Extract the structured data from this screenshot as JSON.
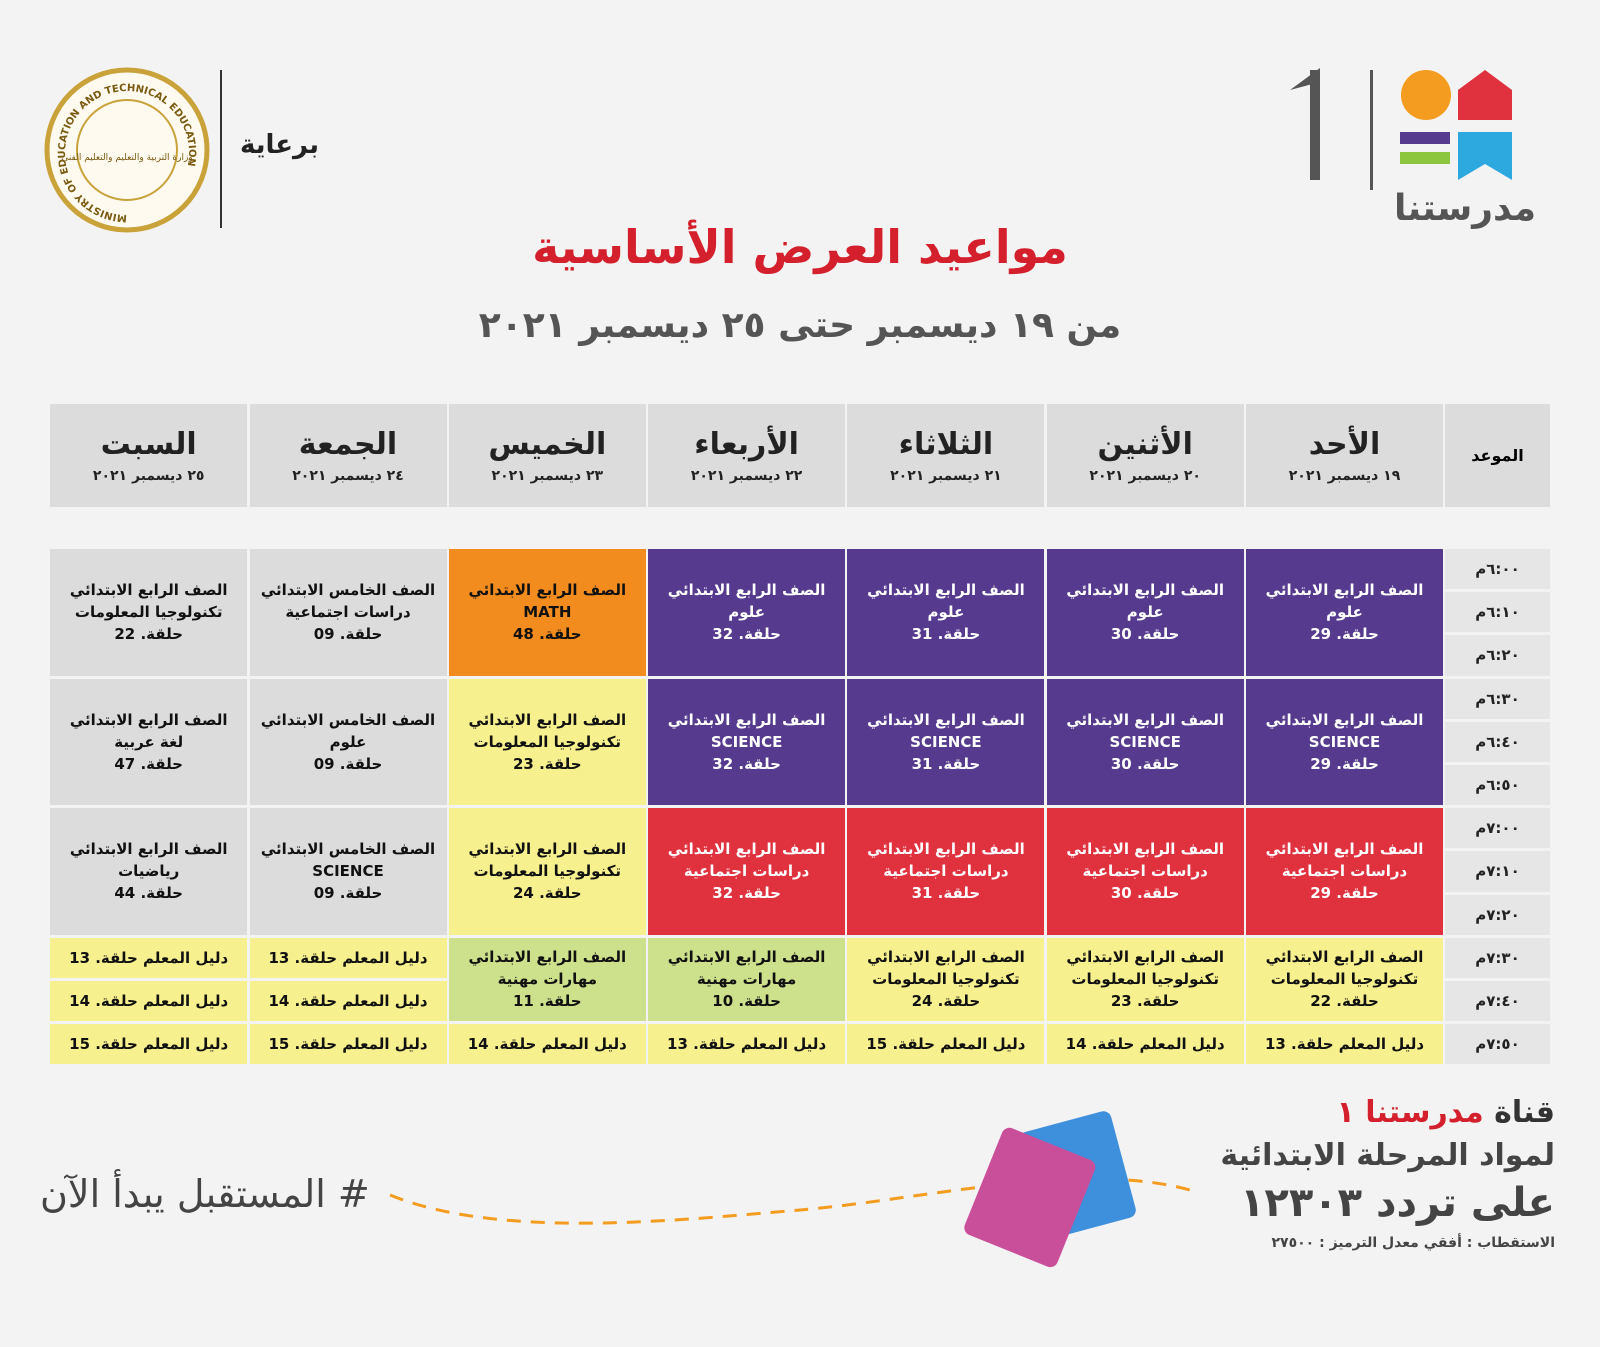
{
  "header": {
    "sponsor": "برعاية",
    "title": "مواعيد العرض الأساسية",
    "subtitle": "من ١٩ ديسمبر حتى ٢٥ ديسمبر ٢٠٢١",
    "channel_logo": {
      "name": "مدرستنا",
      "number": "1"
    },
    "ministry_seal": {
      "arabic": "وزارة التربية والتعليم والتعليم الفني",
      "english": "MINISTRY OF EDUCATION AND TECHNICAL EDUCATION"
    }
  },
  "table": {
    "time_header": "الموعد",
    "times": [
      "٦:٠٠م",
      "٦:١٠م",
      "٦:٢٠م",
      "٦:٣٠م",
      "٦:٤٠م",
      "٦:٥٠م",
      "٧:٠٠م",
      "٧:١٠م",
      "٧:٢٠م",
      "٧:٣٠م",
      "٧:٤٠م",
      "٧:٥٠م"
    ],
    "days": [
      {
        "name": "الأحد",
        "date": "١٩ ديسمبر ٢٠٢١",
        "cells": [
          {
            "color": "#553a8e",
            "lines": [
              "الصف الرابع الابتدائي",
              "علوم",
              "حلقة. 29"
            ]
          },
          {
            "color": "#553a8e",
            "lines": [
              "الصف الرابع الابتدائي",
              "SCIENCE",
              "حلقة. 29"
            ]
          },
          {
            "color": "#e0313f",
            "lines": [
              "الصف الرابع الابتدائي",
              "دراسات اجتماعية",
              "حلقة. 29"
            ]
          },
          {
            "color": "#f7f08f",
            "lines": [
              "الصف الرابع الابتدائي",
              "تكنولوجيا المعلومات",
              "حلقة. 22"
            ]
          },
          {
            "color": "#f7f08f",
            "lines": [
              "دليل المعلم حلقة. 13"
            ]
          }
        ]
      },
      {
        "name": "الأثنين",
        "date": "٢٠ ديسمبر ٢٠٢١",
        "cells": [
          {
            "color": "#553a8e",
            "lines": [
              "الصف الرابع الابتدائي",
              "علوم",
              "حلقة. 30"
            ]
          },
          {
            "color": "#553a8e",
            "lines": [
              "الصف الرابع الابتدائي",
              "SCIENCE",
              "حلقة. 30"
            ]
          },
          {
            "color": "#e0313f",
            "lines": [
              "الصف الرابع الابتدائي",
              "دراسات اجتماعية",
              "حلقة. 30"
            ]
          },
          {
            "color": "#f7f08f",
            "lines": [
              "الصف الرابع الابتدائي",
              "تكنولوجيا المعلومات",
              "حلقة. 23"
            ]
          },
          {
            "color": "#f7f08f",
            "lines": [
              "دليل المعلم حلقة. 14"
            ]
          }
        ]
      },
      {
        "name": "الثلاثاء",
        "date": "٢١ ديسمبر ٢٠٢١",
        "cells": [
          {
            "color": "#553a8e",
            "lines": [
              "الصف الرابع الابتدائي",
              "علوم",
              "حلقة. 31"
            ]
          },
          {
            "color": "#553a8e",
            "lines": [
              "الصف الرابع الابتدائي",
              "SCIENCE",
              "حلقة. 31"
            ]
          },
          {
            "color": "#e0313f",
            "lines": [
              "الصف الرابع الابتدائي",
              "دراسات اجتماعية",
              "حلقة. 31"
            ]
          },
          {
            "color": "#f7f08f",
            "lines": [
              "الصف الرابع الابتدائي",
              "تكنولوجيا المعلومات",
              "حلقة. 24"
            ]
          },
          {
            "color": "#f7f08f",
            "lines": [
              "دليل المعلم حلقة. 15"
            ]
          }
        ]
      },
      {
        "name": "الأربعاء",
        "date": "٢٢ ديسمبر ٢٠٢١",
        "cells": [
          {
            "color": "#553a8e",
            "lines": [
              "الصف الرابع الابتدائي",
              "علوم",
              "حلقة. 32"
            ]
          },
          {
            "color": "#553a8e",
            "lines": [
              "الصف الرابع الابتدائي",
              "SCIENCE",
              "حلقة. 32"
            ]
          },
          {
            "color": "#e0313f",
            "lines": [
              "الصف الرابع الابتدائي",
              "دراسات اجتماعية",
              "حلقة. 32"
            ]
          },
          {
            "color": "#cde08c",
            "lines": [
              "الصف الرابع الابتدائي",
              "مهارات مهنية",
              "حلقة. 10"
            ]
          },
          {
            "color": "#f7f08f",
            "lines": [
              "دليل المعلم حلقة. 13"
            ]
          }
        ]
      },
      {
        "name": "الخميس",
        "date": "٢٣ ديسمبر ٢٠٢١",
        "cells": [
          {
            "color": "#f28c1f",
            "lines": [
              "الصف الرابع الابتدائي",
              "MATH",
              "حلقة. 48"
            ]
          },
          {
            "color": "#f7f08f",
            "lines": [
              "الصف الرابع الابتدائي",
              "تكنولوجيا المعلومات",
              "حلقة. 23"
            ]
          },
          {
            "color": "#f7f08f",
            "lines": [
              "الصف الرابع الابتدائي",
              "تكنولوجيا المعلومات",
              "حلقة. 24"
            ]
          },
          {
            "color": "#cde08c",
            "lines": [
              "الصف الرابع الابتدائي",
              "مهارات مهنية",
              "حلقة. 11"
            ]
          },
          {
            "color": "#f7f08f",
            "lines": [
              "دليل المعلم حلقة. 14"
            ]
          }
        ]
      },
      {
        "name": "الجمعة",
        "date": "٢٤ ديسمبر ٢٠٢١",
        "cells": [
          {
            "color": "#dcdcdc",
            "lines": [
              "الصف الخامس الابتدائي",
              "دراسات اجتماعية",
              "حلقة. 09"
            ]
          },
          {
            "color": "#dcdcdc",
            "lines": [
              "الصف الخامس الابتدائي",
              "علوم",
              "حلقة. 09"
            ]
          },
          {
            "color": "#dcdcdc",
            "lines": [
              "الصف الخامس الابتدائي",
              "SCIENCE",
              "حلقة. 09"
            ]
          },
          {
            "color": "#f7f08f",
            "lines": [
              "دليل المعلم حلقة. 13"
            ]
          },
          {
            "color": "#f7f08f",
            "lines": [
              "دليل المعلم حلقة. 14"
            ]
          },
          {
            "color": "#f7f08f",
            "lines": [
              "دليل المعلم حلقة. 15"
            ]
          }
        ]
      },
      {
        "name": "السبت",
        "date": "٢٥ ديسمبر ٢٠٢١",
        "cells": [
          {
            "color": "#dcdcdc",
            "lines": [
              "الصف الرابع الابتدائي",
              "تكنولوجيا المعلومات",
              "حلقة. 22"
            ]
          },
          {
            "color": "#dcdcdc",
            "lines": [
              "الصف الرابع الابتدائي",
              "لغة عربية",
              "حلقة. 47"
            ]
          },
          {
            "color": "#dcdcdc",
            "lines": [
              "الصف الرابع الابتدائي",
              "رياضيات",
              "حلقة. 44"
            ]
          },
          {
            "color": "#f7f08f",
            "lines": [
              "دليل المعلم حلقة. 13"
            ]
          },
          {
            "color": "#f7f08f",
            "lines": [
              "دليل المعلم حلقة. 14"
            ]
          },
          {
            "color": "#f7f08f",
            "lines": [
              "دليل المعلم حلقة. 15"
            ]
          }
        ]
      }
    ]
  },
  "footer": {
    "hashtag": "# المستقبل يبدأ الآن",
    "channel_prefix": "قناة",
    "channel_name": "مدرستنا ١",
    "subjects": "لمواد المرحلة الابتدائية",
    "frequency": "على تردد ١٢٣٠٣",
    "details": "الاستقطاب : أفقي معدل الترميز : ٢٧٥٠٠"
  }
}
